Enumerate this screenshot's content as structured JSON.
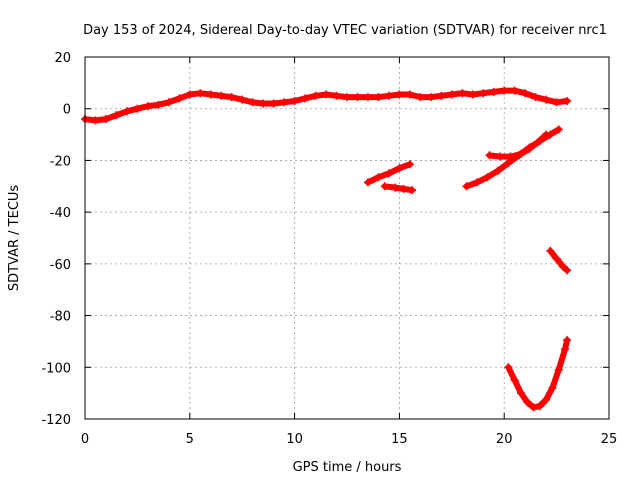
{
  "chart_data": {
    "type": "scatter",
    "title": "Day 153 of 2024, Sidereal Day-to-day VTEC variation (SDTVAR) for receiver nrc1",
    "xlabel": "GPS time / hours",
    "ylabel": "SDTVAR / TECUs",
    "xlim": [
      0,
      25
    ],
    "ylim": [
      -120,
      20
    ],
    "xticks": [
      "0",
      "5",
      "10",
      "15",
      "20",
      "25"
    ],
    "yticks": [
      "20",
      "0",
      "-20",
      "-40",
      "-60",
      "-80",
      "-100",
      "-120"
    ],
    "grid": true,
    "marker": "plus",
    "color": "#ff0000",
    "series": [
      {
        "values": [
          [
            0.0,
            -4.0
          ],
          [
            0.5,
            -4.5
          ],
          [
            1.0,
            -4.0
          ],
          [
            1.5,
            -2.5
          ],
          [
            2.0,
            -1.0
          ],
          [
            2.5,
            0.0
          ],
          [
            3.0,
            1.0
          ],
          [
            3.5,
            1.5
          ],
          [
            4.0,
            2.5
          ],
          [
            4.5,
            4.0
          ],
          [
            5.0,
            5.5
          ],
          [
            5.5,
            6.0
          ],
          [
            6.0,
            5.5
          ],
          [
            6.5,
            5.0
          ],
          [
            7.0,
            4.5
          ],
          [
            7.5,
            3.5
          ],
          [
            8.0,
            2.5
          ],
          [
            8.5,
            2.0
          ],
          [
            9.0,
            2.0
          ],
          [
            9.5,
            2.5
          ],
          [
            10.0,
            3.0
          ],
          [
            10.5,
            4.0
          ],
          [
            11.0,
            5.0
          ],
          [
            11.5,
            5.5
          ],
          [
            12.0,
            5.0
          ],
          [
            12.5,
            4.5
          ],
          [
            13.0,
            4.5
          ],
          [
            13.5,
            4.5
          ],
          [
            14.0,
            4.5
          ],
          [
            14.5,
            5.0
          ],
          [
            15.0,
            5.5
          ],
          [
            15.5,
            5.5
          ],
          [
            16.0,
            4.5
          ],
          [
            16.5,
            4.5
          ],
          [
            17.0,
            5.0
          ],
          [
            17.5,
            5.5
          ],
          [
            18.0,
            6.0
          ],
          [
            18.5,
            5.5
          ],
          [
            19.0,
            6.0
          ],
          [
            19.5,
            6.5
          ],
          [
            20.0,
            7.0
          ],
          [
            20.5,
            7.0
          ],
          [
            21.0,
            6.0
          ],
          [
            21.5,
            4.5
          ],
          [
            22.0,
            3.5
          ],
          [
            22.5,
            2.5
          ],
          [
            23.0,
            3.0
          ]
        ]
      },
      {
        "values": [
          [
            13.5,
            -28.5
          ],
          [
            14.0,
            -26.5
          ],
          [
            14.5,
            -25.0
          ],
          [
            15.0,
            -23.0
          ],
          [
            15.5,
            -21.5
          ]
        ]
      },
      {
        "values": [
          [
            14.3,
            -30.0
          ],
          [
            14.8,
            -30.5
          ],
          [
            15.2,
            -31.0
          ],
          [
            15.6,
            -31.5
          ]
        ]
      },
      {
        "values": [
          [
            18.2,
            -30.0
          ],
          [
            18.7,
            -28.5
          ],
          [
            19.2,
            -26.5
          ],
          [
            19.7,
            -24.0
          ],
          [
            20.2,
            -21.0
          ],
          [
            20.7,
            -18.0
          ],
          [
            21.2,
            -15.0
          ],
          [
            21.7,
            -12.5
          ],
          [
            22.2,
            -10.0
          ],
          [
            22.6,
            -8.0
          ]
        ]
      },
      {
        "values": [
          [
            19.3,
            -18.0
          ],
          [
            19.8,
            -18.5
          ],
          [
            20.3,
            -18.5
          ],
          [
            20.8,
            -17.5
          ],
          [
            21.2,
            -15.5
          ],
          [
            21.6,
            -13.0
          ],
          [
            22.0,
            -10.0
          ]
        ]
      },
      {
        "values": [
          [
            22.2,
            -55.0
          ],
          [
            22.5,
            -58.0
          ],
          [
            22.8,
            -61.0
          ],
          [
            23.0,
            -62.5
          ]
        ]
      },
      {
        "values": [
          [
            20.2,
            -100.0
          ],
          [
            20.5,
            -105.0
          ],
          [
            20.8,
            -110.0
          ],
          [
            21.1,
            -113.5
          ],
          [
            21.4,
            -115.5
          ],
          [
            21.7,
            -115.0
          ],
          [
            22.0,
            -112.5
          ],
          [
            22.3,
            -108.0
          ],
          [
            22.6,
            -101.0
          ],
          [
            22.9,
            -93.0
          ],
          [
            23.0,
            -89.5
          ]
        ]
      }
    ]
  }
}
